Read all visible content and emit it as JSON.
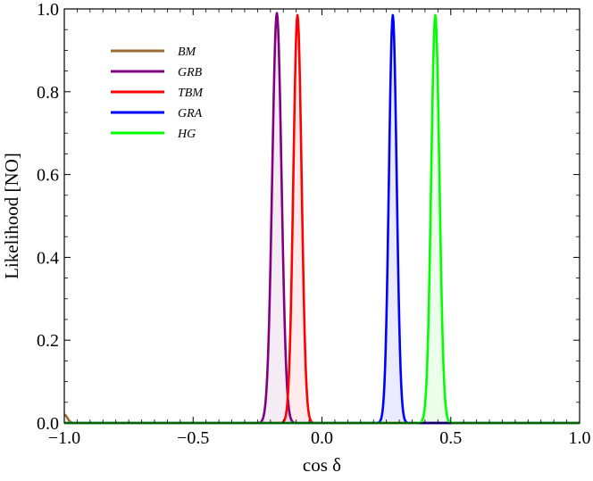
{
  "chart_data": {
    "type": "line",
    "xlabel": "cos δ",
    "ylabel": "Likelihood [NO]",
    "xlim": [
      -1.0,
      1.0
    ],
    "ylim": [
      0.0,
      1.0
    ],
    "x_ticks": [
      "−1.0",
      "−0.5",
      "0.0",
      "0.5",
      "1.0"
    ],
    "x_tick_values": [
      -1.0,
      -0.5,
      0.0,
      0.5,
      1.0
    ],
    "y_ticks": [
      "0.0",
      "0.2",
      "0.4",
      "0.6",
      "0.8",
      "1.0"
    ],
    "y_tick_values": [
      0.0,
      0.2,
      0.4,
      0.6,
      0.8,
      1.0
    ],
    "grid": false,
    "legend_position": "top-left",
    "series": [
      {
        "name": "BM",
        "color": "#9c6b30",
        "peak_x": -1.0,
        "peak_y": 0.02,
        "width": 0.012,
        "shaded": false
      },
      {
        "name": "GRB",
        "color": "#800080",
        "peak_x": -0.175,
        "peak_y": 0.99,
        "width": 0.018,
        "shaded": true
      },
      {
        "name": "TBM",
        "color": "#ff0000",
        "peak_x": -0.095,
        "peak_y": 0.985,
        "width": 0.016,
        "shaded": true
      },
      {
        "name": "GRA",
        "color": "#0000ff",
        "peak_x": 0.275,
        "peak_y": 0.985,
        "width": 0.015,
        "shaded": true
      },
      {
        "name": "HG",
        "color": "#00ff00",
        "peak_x": 0.44,
        "peak_y": 0.985,
        "width": 0.016,
        "shaded": true
      }
    ]
  }
}
